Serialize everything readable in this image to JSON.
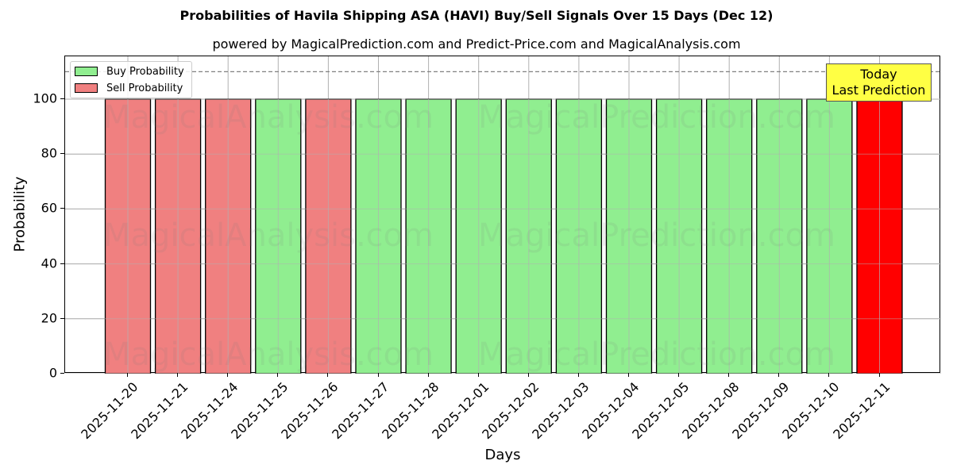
{
  "header": {
    "title": "Probabilities of Havila Shipping ASA (HAVI) Buy/Sell Signals Over 15 Days (Dec 12)",
    "subtitle": "powered by MagicalPrediction.com and Predict-Price.com and MagicalAnalysis.com"
  },
  "axes": {
    "xlabel": "Days",
    "ylabel": "Probability",
    "yticks": [
      "0",
      "20",
      "40",
      "60",
      "80",
      "100"
    ]
  },
  "legend": {
    "items": [
      {
        "label": "Buy Probability",
        "color": "#90ee90"
      },
      {
        "label": "Sell Probability",
        "color": "#f08080"
      }
    ]
  },
  "annotation": {
    "line1": "Today",
    "line2": "Last Prediction",
    "color": "#ffff44"
  },
  "watermarks": [
    "MagicalAnalysis.com",
    "MagicalPrediction.com"
  ],
  "colors": {
    "buy": "#90ee90",
    "sell": "#f08080",
    "today": "#ff0000",
    "grid": "#b0b0b0",
    "threshold_line": "#808080"
  },
  "chart_data": {
    "type": "bar",
    "title": "Probabilities of Havila Shipping ASA (HAVI) Buy/Sell Signals Over 15 Days (Dec 12)",
    "subtitle": "powered by MagicalPrediction.com and Predict-Price.com and MagicalAnalysis.com",
    "xlabel": "Days",
    "ylabel": "Probability",
    "ylim": [
      0,
      115
    ],
    "yticks": [
      0,
      20,
      40,
      60,
      80,
      100
    ],
    "grid": true,
    "legend_position": "upper left",
    "threshold_line": {
      "y": 110,
      "style": "dashed"
    },
    "categories": [
      "2025-11-20",
      "2025-11-21",
      "2025-11-24",
      "2025-11-25",
      "2025-11-26",
      "2025-11-27",
      "2025-11-28",
      "2025-12-01",
      "2025-12-02",
      "2025-12-03",
      "2025-12-04",
      "2025-12-05",
      "2025-12-08",
      "2025-12-09",
      "2025-12-10",
      "2025-12-11"
    ],
    "values": [
      100,
      100,
      100,
      100,
      100,
      100,
      100,
      100,
      100,
      100,
      100,
      100,
      100,
      100,
      100,
      100
    ],
    "signals": [
      "Sell",
      "Sell",
      "Sell",
      "Buy",
      "Sell",
      "Buy",
      "Buy",
      "Buy",
      "Buy",
      "Buy",
      "Buy",
      "Buy",
      "Buy",
      "Buy",
      "Buy",
      "Sell"
    ],
    "series": [
      {
        "name": "Buy Probability",
        "values": [
          0,
          0,
          0,
          100,
          0,
          100,
          100,
          100,
          100,
          100,
          100,
          100,
          100,
          100,
          100,
          0
        ]
      },
      {
        "name": "Sell Probability",
        "values": [
          100,
          100,
          100,
          0,
          100,
          0,
          0,
          0,
          0,
          0,
          0,
          0,
          0,
          0,
          0,
          100
        ]
      }
    ],
    "highlight": {
      "index": 15,
      "label": "Today\nLast Prediction",
      "color": "#ff0000"
    }
  }
}
